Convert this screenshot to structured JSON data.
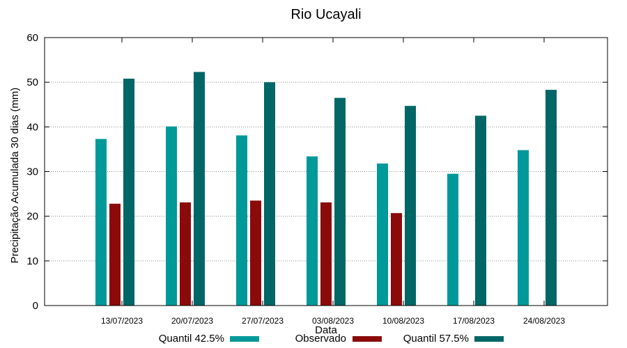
{
  "chart_data": {
    "type": "bar",
    "title": "Rio Ucayali",
    "xlabel": "Data",
    "ylabel": "Precipitação Acumulada 30 dias (mm)",
    "ylim": [
      0,
      60
    ],
    "yticks": [
      0,
      10,
      20,
      30,
      40,
      50,
      60
    ],
    "grid": true,
    "legend": "bottom",
    "categories": [
      "13/07/2023",
      "20/07/2023",
      "27/07/2023",
      "03/08/2023",
      "10/08/2023",
      "17/08/2023",
      "24/08/2023"
    ],
    "series": [
      {
        "name": "Quantil 42.5%",
        "color": "#009999",
        "values": [
          37.3,
          40.1,
          38.1,
          33.4,
          31.8,
          29.5,
          34.8
        ]
      },
      {
        "name": "Observado",
        "color": "#8b0a0a",
        "values": [
          22.8,
          23.1,
          23.5,
          23.1,
          20.7,
          null,
          null
        ]
      },
      {
        "name": "Quantil 57.5%",
        "color": "#006666",
        "values": [
          50.8,
          52.3,
          50.0,
          46.5,
          44.7,
          42.5,
          48.3
        ]
      }
    ]
  }
}
